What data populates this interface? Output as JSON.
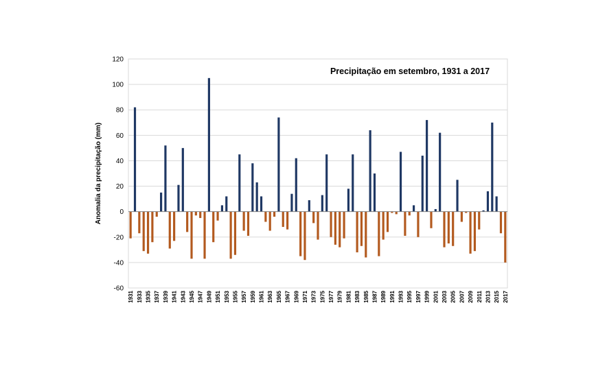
{
  "chart_data": {
    "type": "bar",
    "title": "Precipitação em setembro, 1931 a 2017",
    "xlabel": "",
    "ylabel": "Anomalia da precipitação (mm)",
    "ylim": [
      -60,
      120
    ],
    "yticks": [
      -60,
      -40,
      -20,
      0,
      20,
      40,
      60,
      80,
      100,
      120
    ],
    "grid": true,
    "legend": "none",
    "colors": {
      "positive": "#1f3864",
      "negative": "#b35a1f",
      "grid": "#d9d9d9",
      "axis": "#7f7f7f"
    },
    "x_tick_labels": [
      "1931",
      "1933",
      "1935",
      "1937",
      "1939",
      "1941",
      "1943",
      "1945",
      "1947",
      "1949",
      "1951",
      "1953",
      "1955",
      "1957",
      "1959",
      "1961",
      "1963",
      "1965",
      "1967",
      "1969",
      "1971",
      "1973",
      "1975",
      "1977",
      "1979",
      "1981",
      "1983",
      "1985",
      "1987",
      "1989",
      "1991",
      "1993",
      "1995",
      "1997",
      "1999",
      "2001",
      "2003",
      "2005",
      "2007",
      "2009",
      "2011",
      "2013",
      "2015",
      "2017"
    ],
    "categories": [
      1931,
      1932,
      1933,
      1934,
      1935,
      1936,
      1937,
      1938,
      1939,
      1940,
      1941,
      1942,
      1943,
      1944,
      1945,
      1946,
      1947,
      1948,
      1949,
      1950,
      1951,
      1952,
      1953,
      1954,
      1955,
      1956,
      1957,
      1958,
      1959,
      1960,
      1961,
      1962,
      1963,
      1964,
      1965,
      1966,
      1967,
      1968,
      1969,
      1970,
      1971,
      1972,
      1973,
      1974,
      1975,
      1976,
      1977,
      1978,
      1979,
      1980,
      1981,
      1982,
      1983,
      1984,
      1985,
      1986,
      1987,
      1988,
      1989,
      1990,
      1991,
      1992,
      1993,
      1994,
      1995,
      1996,
      1997,
      1998,
      1999,
      2000,
      2001,
      2002,
      2003,
      2004,
      2005,
      2006,
      2007,
      2008,
      2009,
      2010,
      2011,
      2012,
      2013,
      2014,
      2015,
      2016,
      2017
    ],
    "values": [
      -21,
      82,
      -17,
      -31,
      -33,
      -24,
      -4,
      15,
      52,
      -29,
      -23,
      21,
      50,
      -16,
      -37,
      -3,
      -5,
      -37,
      105,
      -24,
      -7,
      5,
      12,
      -37,
      -34,
      45,
      -15,
      -19,
      38,
      23,
      12,
      -8,
      -15,
      -4,
      74,
      -12,
      -14,
      14,
      42,
      -35,
      -38,
      9,
      -9,
      -22,
      13,
      45,
      -20,
      -26,
      -28,
      -21,
      18,
      45,
      -32,
      -27,
      -36,
      64,
      30,
      -35,
      -22,
      -16,
      -1,
      -2,
      47,
      -19,
      -3,
      5,
      -20,
      44,
      72,
      -13,
      2,
      62,
      -28,
      -25,
      -27,
      25,
      -8,
      -1,
      -33,
      -31,
      -14,
      1,
      16,
      70,
      12,
      -17,
      -40
    ]
  }
}
